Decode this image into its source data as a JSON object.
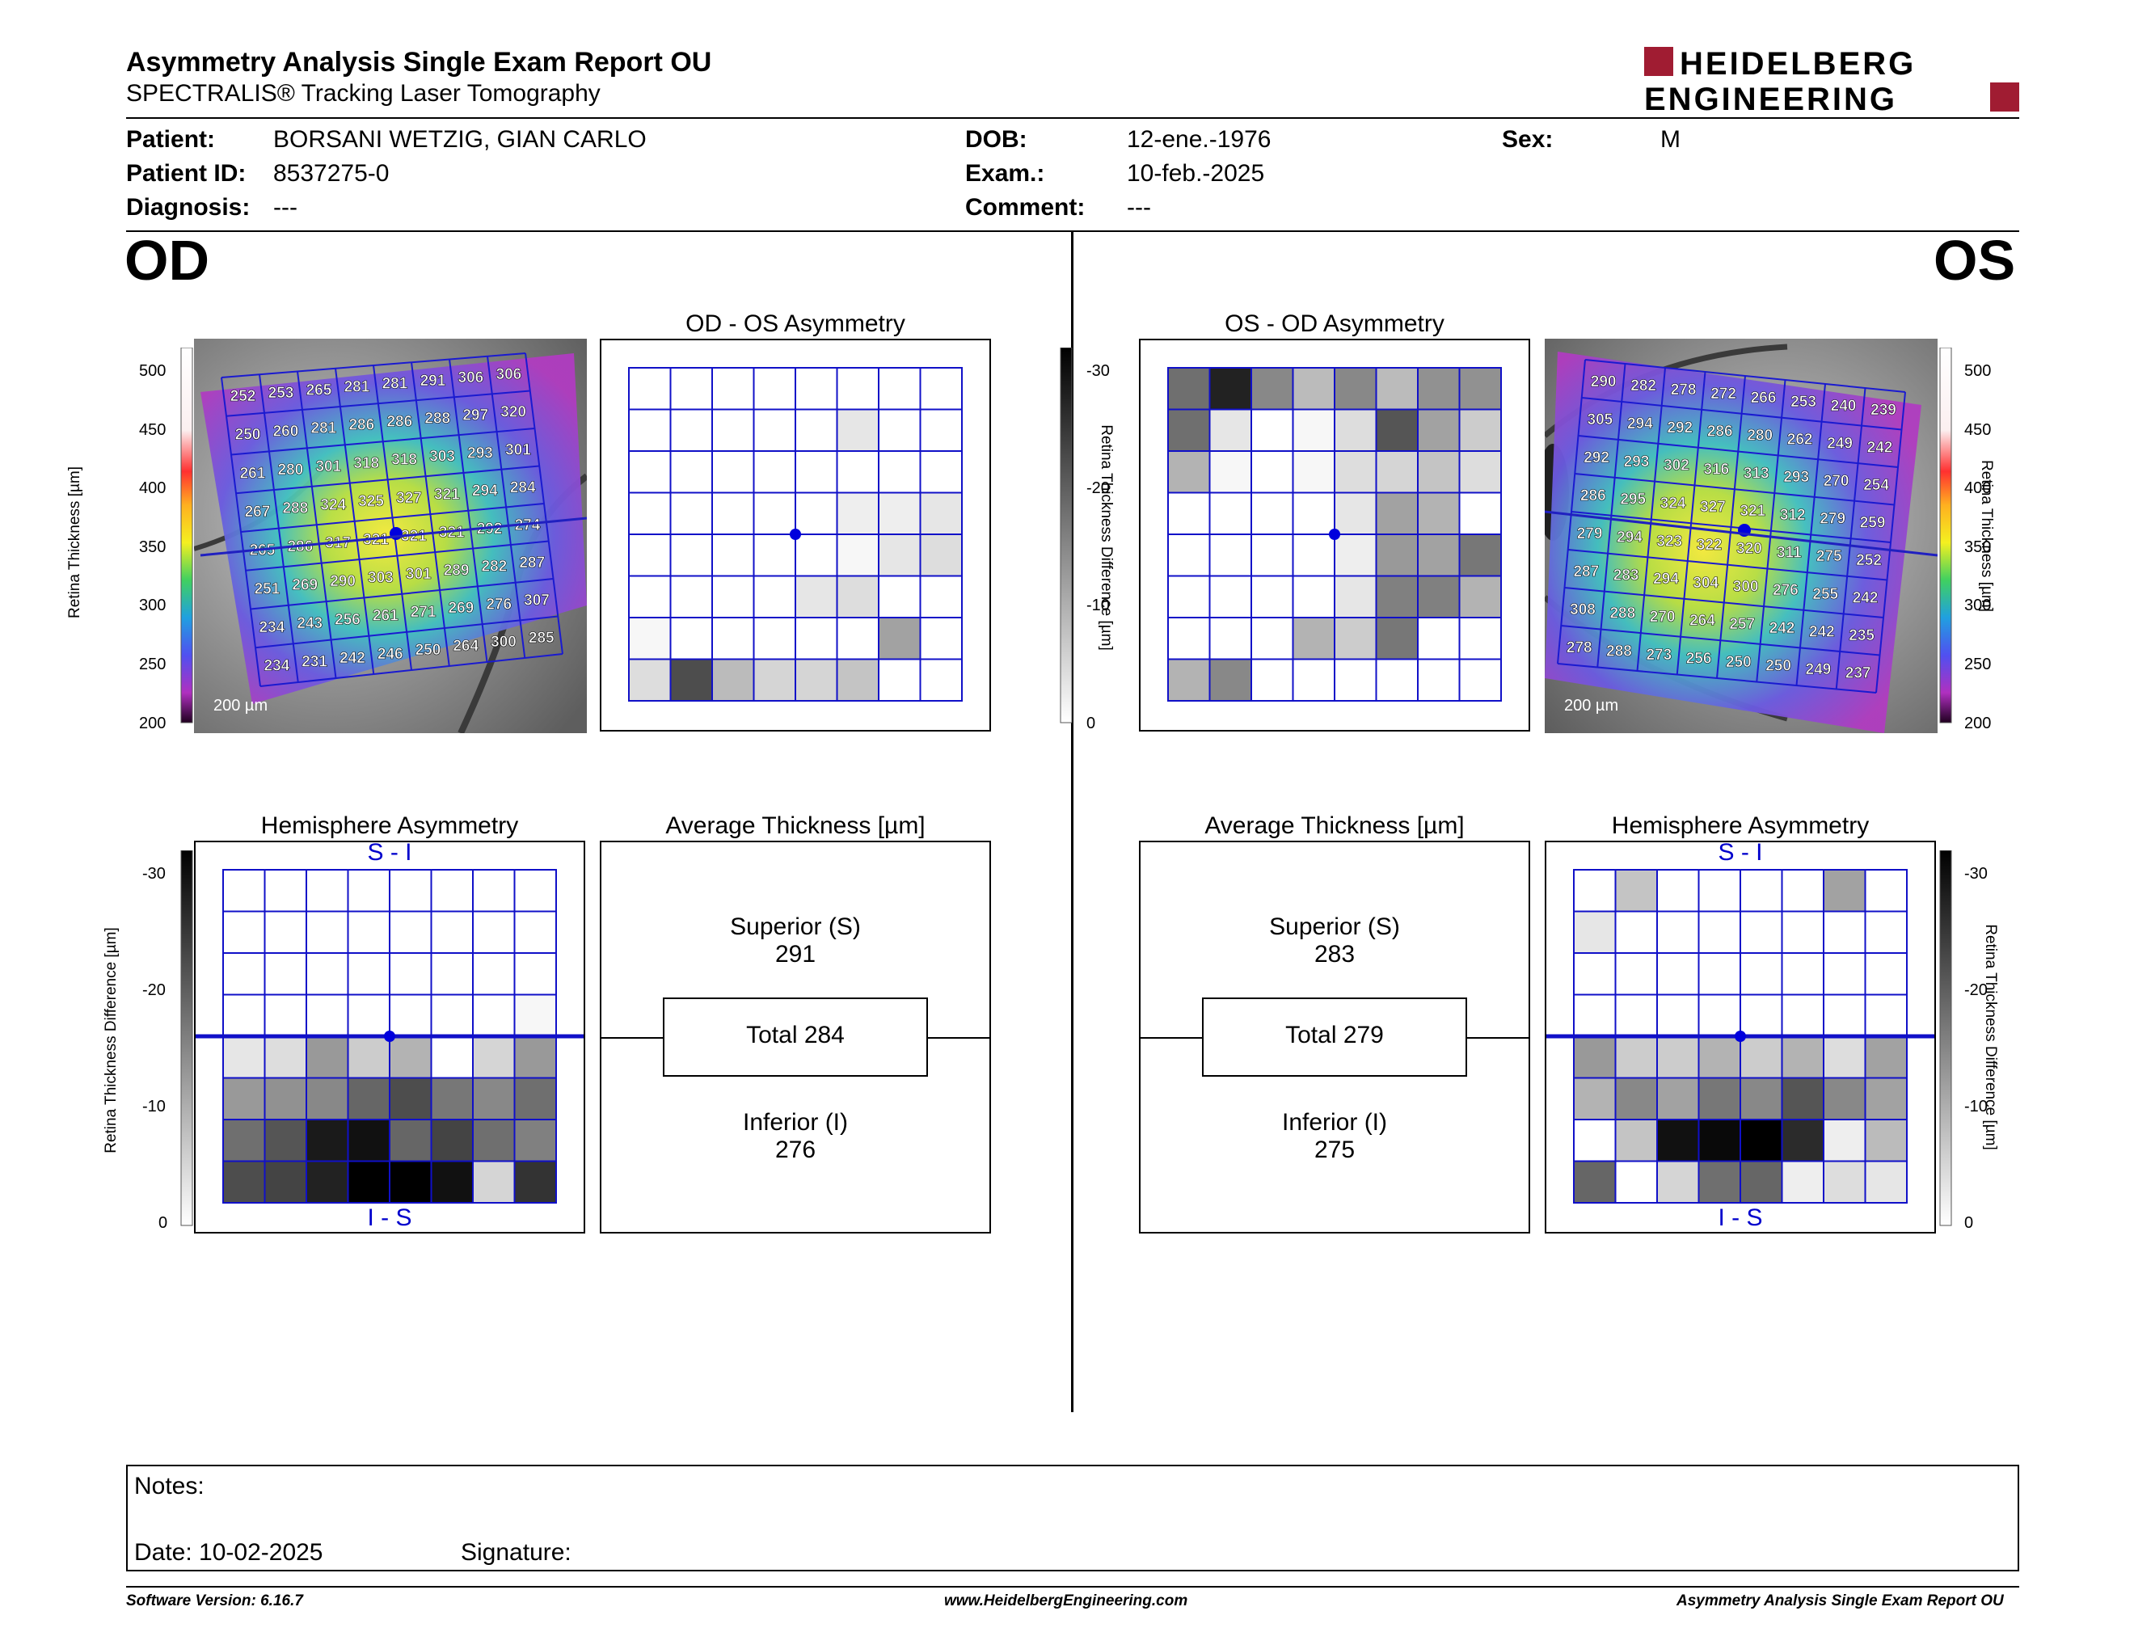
{
  "header": {
    "title": "Asymmetry Analysis Single Exam Report OU",
    "subtitle": "SPECTRALIS® Tracking Laser Tomography",
    "logo_line1": "HEIDELBERG",
    "logo_line2": "ENGINEERING",
    "logo_color": "#a01c32"
  },
  "patient": {
    "patient_label": "Patient:",
    "patient_value": "BORSANI WETZIG, GIAN CARLO",
    "id_label": "Patient ID:",
    "id_value": "8537275-0",
    "diagnosis_label": "Diagnosis:",
    "diagnosis_value": "---",
    "dob_label": "DOB:",
    "dob_value": "12-ene.-1976",
    "exam_label": "Exam.:",
    "exam_value": "10-feb.-2025",
    "comment_label": "Comment:",
    "comment_value": "---",
    "sex_label": "Sex:",
    "sex_value": "M"
  },
  "od": {
    "label": "OD",
    "asym_title": "OD - OS Asymmetry",
    "hemi_title": "Hemisphere Asymmetry",
    "hemi_top": "S - I",
    "hemi_bottom": "I - S",
    "avg_title": "Average Thickness [µm]",
    "superior_label": "Superior (S)",
    "superior_value": "291",
    "total_label": "Total 284",
    "inferior_label": "Inferior (I)",
    "inferior_value": "276",
    "scale_bar": "200 µm",
    "thickness_grid": [
      [
        252,
        253,
        265,
        281,
        281,
        291,
        306,
        306
      ],
      [
        250,
        260,
        281,
        286,
        286,
        288,
        297,
        320
      ],
      [
        261,
        280,
        301,
        318,
        318,
        303,
        293,
        301
      ],
      [
        267,
        288,
        324,
        325,
        327,
        321,
        294,
        284
      ],
      [
        265,
        286,
        317,
        321,
        321,
        321,
        292,
        274
      ],
      [
        251,
        269,
        290,
        303,
        301,
        289,
        282,
        287
      ],
      [
        234,
        243,
        256,
        261,
        271,
        269,
        276,
        307
      ],
      [
        234,
        231,
        242,
        246,
        250,
        264,
        300,
        285
      ]
    ],
    "asym_grid": [
      [
        0,
        0,
        0,
        0,
        0,
        0,
        0,
        0
      ],
      [
        0,
        0,
        0,
        0,
        0,
        3,
        0,
        0
      ],
      [
        0,
        0,
        0,
        0,
        0,
        0,
        0,
        0
      ],
      [
        0,
        0,
        0,
        0,
        0,
        2,
        2,
        3
      ],
      [
        0,
        0,
        0,
        0,
        0,
        1,
        3,
        4
      ],
      [
        0,
        0,
        0,
        0,
        3,
        4,
        0,
        0
      ],
      [
        1,
        0,
        0,
        0,
        0,
        0,
        11,
        0
      ],
      [
        4,
        21,
        8,
        5,
        5,
        7,
        0,
        0
      ]
    ],
    "hemi_grid": [
      [
        0,
        0,
        0,
        0,
        0,
        0,
        0,
        0
      ],
      [
        0,
        0,
        0,
        0,
        0,
        0,
        0,
        0
      ],
      [
        0,
        0,
        0,
        0,
        0,
        0,
        0,
        0
      ],
      [
        0,
        0,
        0,
        0,
        0,
        0,
        0,
        1
      ],
      [
        3,
        4,
        12,
        6,
        9,
        0,
        5,
        12
      ],
      [
        12,
        13,
        14,
        18,
        21,
        16,
        14,
        17
      ],
      [
        17,
        20,
        27,
        28,
        18,
        22,
        17,
        15
      ],
      [
        21,
        22,
        26,
        30,
        31,
        28,
        5,
        24
      ]
    ]
  },
  "os": {
    "label": "OS",
    "asym_title": "OS - OD Asymmetry",
    "hemi_title": "Hemisphere Asymmetry",
    "hemi_top": "S - I",
    "hemi_bottom": "I - S",
    "avg_title": "Average Thickness [µm]",
    "superior_label": "Superior (S)",
    "superior_value": "283",
    "total_label": "Total 279",
    "inferior_label": "Inferior (I)",
    "inferior_value": "275",
    "scale_bar": "200 µm",
    "thickness_grid": [
      [
        290,
        282,
        278,
        272,
        266,
        253,
        240,
        239
      ],
      [
        305,
        294,
        292,
        286,
        280,
        262,
        249,
        242
      ],
      [
        292,
        293,
        302,
        316,
        313,
        293,
        270,
        254
      ],
      [
        286,
        295,
        324,
        327,
        321,
        312,
        279,
        259
      ],
      [
        279,
        294,
        323,
        322,
        320,
        311,
        275,
        252
      ],
      [
        287,
        283,
        294,
        304,
        300,
        276,
        255,
        242
      ],
      [
        308,
        288,
        270,
        264,
        257,
        242,
        242,
        235
      ],
      [
        278,
        288,
        273,
        256,
        250,
        250,
        249,
        237
      ]
    ],
    "asym_grid": [
      [
        17,
        26,
        14,
        8,
        14,
        8,
        13,
        13
      ],
      [
        17,
        3,
        0,
        1,
        4,
        20,
        11,
        6
      ],
      [
        9,
        1,
        0,
        1,
        4,
        5,
        7,
        4
      ],
      [
        0,
        0,
        0,
        0,
        3,
        11,
        9,
        0
      ],
      [
        0,
        0,
        0,
        0,
        2,
        12,
        11,
        16
      ],
      [
        0,
        0,
        0,
        0,
        3,
        15,
        15,
        9
      ],
      [
        0,
        0,
        0,
        9,
        6,
        16,
        0,
        0
      ],
      [
        9,
        14,
        0,
        0,
        0,
        0,
        0,
        0
      ]
    ],
    "hemi_grid": [
      [
        0,
        7,
        0,
        0,
        0,
        0,
        11,
        0
      ],
      [
        3,
        0,
        0,
        0,
        0,
        0,
        0,
        0
      ],
      [
        0,
        0,
        0,
        0,
        0,
        0,
        0,
        0
      ],
      [
        0,
        0,
        0,
        0,
        0,
        0,
        0,
        0
      ],
      [
        12,
        6,
        6,
        9,
        6,
        9,
        4,
        11
      ],
      [
        9,
        14,
        11,
        16,
        14,
        20,
        14,
        11
      ],
      [
        0,
        7,
        28,
        29,
        30,
        25,
        2,
        8
      ],
      [
        18,
        0,
        5,
        17,
        18,
        2,
        4,
        3
      ]
    ]
  },
  "scales": {
    "thickness_label": "Retina Thickness [µm]",
    "thickness_ticks": [
      "500",
      "450",
      "400",
      "350",
      "300",
      "250",
      "200"
    ],
    "diff_label": "Retina Thickness Difference [µm]",
    "diff_ticks": [
      "-30",
      "-20",
      "-10",
      "0"
    ]
  },
  "notes": {
    "notes_label": "Notes:",
    "date_label": "Date: 10-02-2025",
    "signature_label": "Signature:"
  },
  "footer": {
    "software": "Software Version: 6.16.7",
    "website": "www.HeidelbergEngineering.com",
    "report": "Asymmetry Analysis Single Exam Report OU"
  }
}
